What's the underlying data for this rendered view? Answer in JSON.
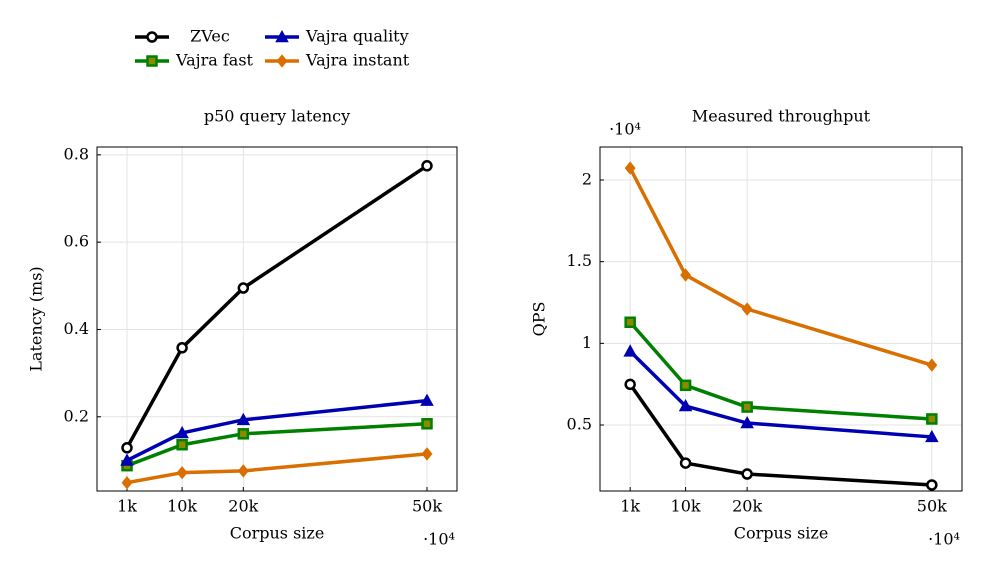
{
  "chart_data": [
    {
      "type": "line",
      "title": "p50 query latency",
      "xlabel": "Corpus size",
      "ylabel": "Latency (ms)",
      "x_multiplier": "·10⁴",
      "x": [
        1000,
        10000,
        20000,
        50000
      ],
      "xlim": [
        -3900,
        54900
      ],
      "xticks": [
        {
          "value": 1000,
          "label": "1k"
        },
        {
          "value": 10000,
          "label": "10k"
        },
        {
          "value": 20000,
          "label": "20k"
        },
        {
          "value": 50000,
          "label": "50k"
        }
      ],
      "ylim": [
        0.03,
        0.818
      ],
      "yticks": [
        0.2,
        0.4,
        0.6,
        0.8
      ],
      "grid": true,
      "series": [
        {
          "name": "ZVec",
          "color": "#000000",
          "marker": "circle",
          "values": [
            0.129,
            0.358,
            0.495,
            0.775
          ]
        },
        {
          "name": "Vajra fast",
          "color": "#008000",
          "marker": "square",
          "values": [
            0.088,
            0.136,
            0.161,
            0.184
          ]
        },
        {
          "name": "Vajra quality",
          "color": "#0000b3",
          "marker": "triangle",
          "values": [
            0.1,
            0.163,
            0.193,
            0.237
          ]
        },
        {
          "name": "Vajra instant",
          "color": "#d96f00",
          "marker": "diamond",
          "values": [
            0.049,
            0.072,
            0.076,
            0.115
          ]
        }
      ]
    },
    {
      "type": "line",
      "title": "Measured throughput",
      "xlabel": "Corpus size",
      "ylabel": "QPS",
      "x_multiplier": "·10⁴",
      "y_multiplier": "·10⁴",
      "x": [
        1000,
        10000,
        20000,
        50000
      ],
      "xlim": [
        -3900,
        54900
      ],
      "xticks": [
        {
          "value": 1000,
          "label": "1k"
        },
        {
          "value": 10000,
          "label": "10k"
        },
        {
          "value": 20000,
          "label": "20k"
        },
        {
          "value": 50000,
          "label": "50k"
        }
      ],
      "ylim": [
        0.096,
        2.202
      ],
      "yticks": [
        0.5,
        1,
        1.5,
        2
      ],
      "grid": true,
      "series": [
        {
          "name": "ZVec",
          "color": "#000000",
          "marker": "circle",
          "values": [
            0.749,
            0.267,
            0.2,
            0.133
          ]
        },
        {
          "name": "Vajra fast",
          "color": "#008000",
          "marker": "square",
          "values": [
            1.129,
            0.743,
            0.61,
            0.537
          ]
        },
        {
          "name": "Vajra quality",
          "color": "#0000b3",
          "marker": "triangle",
          "values": [
            0.951,
            0.616,
            0.512,
            0.427
          ]
        },
        {
          "name": "Vajra instant",
          "color": "#d96f00",
          "marker": "diamond",
          "values": [
            2.073,
            1.418,
            1.21,
            0.867
          ]
        }
      ]
    }
  ]
}
